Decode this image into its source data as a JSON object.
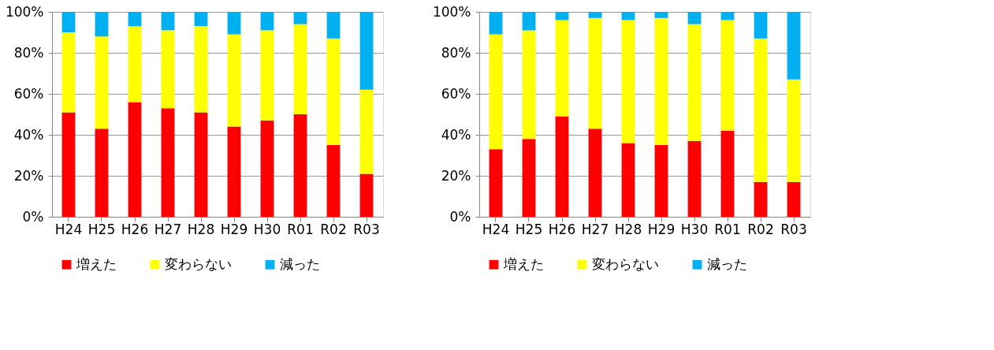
{
  "chart_data": [
    {
      "type": "bar",
      "stacked": true,
      "categories": [
        "H24",
        "H25",
        "H26",
        "H27",
        "H28",
        "H29",
        "H30",
        "R01",
        "R02",
        "R03"
      ],
      "series": [
        {
          "name": "増えた",
          "color": "#ff0000",
          "values": [
            51,
            43,
            56,
            53,
            51,
            44,
            47,
            50,
            35,
            21
          ]
        },
        {
          "name": "変わらない",
          "color": "#ffff00",
          "values": [
            39,
            45,
            37,
            38,
            42,
            45,
            44,
            44,
            52,
            41
          ]
        },
        {
          "name": "減った",
          "color": "#00b0f0",
          "values": [
            10,
            12,
            7,
            9,
            7,
            11,
            9,
            6,
            13,
            38
          ]
        }
      ],
      "ylim": [
        0,
        100
      ],
      "yticks": [
        {
          "value": 0,
          "label": "0%"
        },
        {
          "value": 20,
          "label": "20%"
        },
        {
          "value": 40,
          "label": "40%"
        },
        {
          "value": 60,
          "label": "60%"
        },
        {
          "value": 80,
          "label": "80%"
        },
        {
          "value": 100,
          "label": "100%"
        }
      ],
      "grid": "y",
      "legend": "bottom"
    },
    {
      "type": "bar",
      "stacked": true,
      "categories": [
        "H24",
        "H25",
        "H26",
        "H27",
        "H28",
        "H29",
        "H30",
        "R01",
        "R02",
        "R03"
      ],
      "series": [
        {
          "name": "増えた",
          "color": "#ff0000",
          "values": [
            33,
            38,
            49,
            43,
            36,
            35,
            37,
            42,
            17,
            17
          ]
        },
        {
          "name": "変わらない",
          "color": "#ffff00",
          "values": [
            56,
            53,
            47,
            54,
            60,
            62,
            57,
            54,
            70,
            50
          ]
        },
        {
          "name": "減った",
          "color": "#00b0f0",
          "values": [
            11,
            9,
            4,
            3,
            4,
            3,
            6,
            4,
            13,
            33
          ]
        }
      ],
      "ylim": [
        0,
        100
      ],
      "yticks": [
        {
          "value": 0,
          "label": "0%"
        },
        {
          "value": 20,
          "label": "20%"
        },
        {
          "value": 40,
          "label": "40%"
        },
        {
          "value": 60,
          "label": "60%"
        },
        {
          "value": 80,
          "label": "80%"
        },
        {
          "value": 100,
          "label": "100%"
        }
      ],
      "grid": "y",
      "legend": "bottom"
    }
  ]
}
